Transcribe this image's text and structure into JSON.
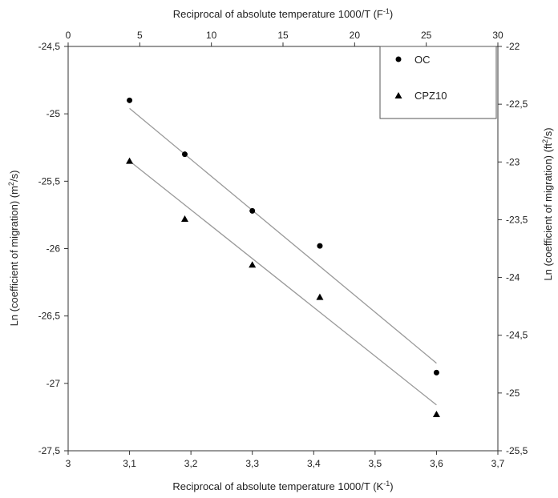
{
  "chart_data": {
    "type": "scatter",
    "x": [
      3.1,
      3.19,
      3.3,
      3.41,
      3.6
    ],
    "series": [
      {
        "name": "OC",
        "marker": "circle",
        "values": [
          -24.9,
          -25.3,
          -25.72,
          -25.98,
          -26.92
        ],
        "trend": [
          -24.96,
          -26.85
        ]
      },
      {
        "name": "CPZ10",
        "marker": "triangle",
        "values": [
          -25.35,
          -25.78,
          -26.12,
          -26.36,
          -27.23
        ],
        "trend": [
          -25.35,
          -27.16
        ]
      }
    ],
    "xlabel": "Reciprocal of absolute temperature 1000/T  (K",
    "xlabel_sup": "-1",
    "xlabel_end": ")",
    "x2label": "Reciprocal of absolute temperature 1000/T  (F",
    "x2label_sup": "-1",
    "x2label_end": ")",
    "ylabel": "Ln (coefficient of migration)  (m",
    "ylabel_sup": "2",
    "ylabel_end": "/s)",
    "y2label": "Ln (coefficient of migration)  (ft",
    "y2label_sup": "2",
    "y2label_end": "/s)",
    "xlim": [
      3,
      3.7
    ],
    "ylim": [
      -27.5,
      -24.5
    ],
    "x2lim": [
      0,
      30
    ],
    "y2lim": [
      -25.5,
      -22
    ],
    "xticks": [
      "3",
      "3,1",
      "3,2",
      "3,3",
      "3,4",
      "3,5",
      "3,6",
      "3,7"
    ],
    "yticks": [
      "-24,5",
      "-25",
      "-25,5",
      "-26",
      "-26,5",
      "-27",
      "-27,5"
    ],
    "x2ticks": [
      "0",
      "5",
      "10",
      "15",
      "20",
      "25",
      "30"
    ],
    "y2ticks": [
      "-22",
      "-22,5",
      "-23",
      "-23,5",
      "-24",
      "-24,5",
      "-25",
      "-25,5"
    ],
    "legend_position": "top-right",
    "grid": false,
    "colors": {
      "marker": "#000000",
      "trend": "#9a9a9a",
      "axis": "#333333"
    }
  }
}
